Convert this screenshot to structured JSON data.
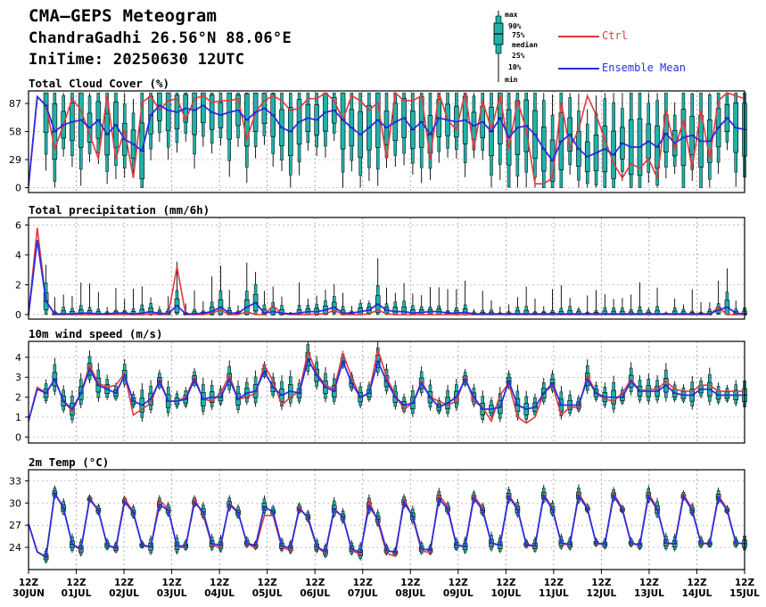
{
  "header": {
    "title": "CMA–GEPS Meteogram",
    "location": "ChandraGadhi 26.56°N 88.06°E",
    "init_time": "IniTime: 20250630 12UTC"
  },
  "legend": {
    "box_labels": [
      "max",
      "90%",
      "75%",
      "median",
      "25%",
      "10%",
      "min"
    ],
    "ctrl_label": "Ctrl",
    "mean_label": "Ensemble Mean",
    "ctrl_color": "#e0393e",
    "mean_color": "#2a2ee0",
    "box_color": "#20b2aa"
  },
  "x_axis": {
    "labels": [
      [
        "12Z",
        "30JUN"
      ],
      [
        "12Z",
        "01JUL"
      ],
      [
        "12Z",
        "02JUL"
      ],
      [
        "12Z",
        "03JUL"
      ],
      [
        "12Z",
        "04JUL"
      ],
      [
        "12Z",
        "05JUL"
      ],
      [
        "12Z",
        "06JUL"
      ],
      [
        "12Z",
        "07JUL"
      ],
      [
        "12Z",
        "08JUL"
      ],
      [
        "12Z",
        "09JUL"
      ],
      [
        "12Z",
        "10JUL"
      ],
      [
        "12Z",
        "11JUL"
      ],
      [
        "12Z",
        "12JUL"
      ],
      [
        "12Z",
        "13JUL"
      ],
      [
        "12Z",
        "14JUL"
      ],
      [
        "12Z",
        "15JUL"
      ]
    ]
  },
  "chart_data": [
    {
      "type": "box",
      "title": "Total Cloud Cover (%)",
      "ylim": [
        -5,
        100
      ],
      "yticks": [
        0,
        29,
        58,
        87
      ],
      "box_start_index": 2,
      "ctrl": [
        2,
        94,
        85,
        40,
        65,
        92,
        80,
        55,
        30,
        95,
        30,
        60,
        10,
        88,
        95,
        80,
        90,
        92,
        70,
        92,
        95,
        88,
        90,
        90,
        92,
        50,
        78,
        90,
        95,
        90,
        80,
        82,
        92,
        92,
        98,
        90,
        70,
        95,
        90,
        80,
        88,
        30,
        98,
        90,
        90,
        95,
        30,
        98,
        70,
        60,
        98,
        40,
        90,
        60,
        95,
        40,
        90,
        60,
        4,
        4,
        10,
        88,
        40,
        60,
        95,
        75,
        50,
        25,
        10,
        25,
        20,
        30,
        10,
        80,
        40,
        70,
        20,
        80,
        30,
        90,
        98,
        95,
        92
      ],
      "mean": [
        2,
        94,
        85,
        58,
        65,
        68,
        70,
        62,
        70,
        55,
        65,
        50,
        45,
        38,
        75,
        85,
        80,
        78,
        82,
        80,
        85,
        78,
        75,
        78,
        80,
        70,
        78,
        82,
        75,
        62,
        58,
        68,
        72,
        70,
        78,
        80,
        70,
        62,
        55,
        62,
        70,
        62,
        68,
        72,
        60,
        68,
        55,
        72,
        70,
        68,
        70,
        64,
        68,
        58,
        72,
        52,
        62,
        64,
        55,
        40,
        28,
        48,
        55,
        40,
        32,
        36,
        40,
        34,
        46,
        42,
        42,
        48,
        42,
        56,
        46,
        52,
        54,
        48,
        48,
        62,
        72,
        62,
        60
      ]
    },
    {
      "type": "box",
      "title": "Total precipitation (mm/6h)",
      "ylim": [
        -0.3,
        6.5
      ],
      "yticks": [
        0,
        2,
        4,
        6
      ],
      "box_start_index": 2,
      "ctrl": [
        0,
        5.8,
        0.9,
        0,
        0,
        0,
        0,
        0,
        0,
        0,
        0,
        0,
        0,
        0,
        0.05,
        0,
        0,
        3.2,
        0,
        0,
        0,
        0.1,
        0.3,
        0,
        0,
        0.2,
        0,
        0,
        0.6,
        0.05,
        0,
        0,
        0,
        0.05,
        0.05,
        0.3,
        0,
        0,
        0,
        0.05,
        0.3,
        0.05,
        0,
        0,
        0,
        0,
        0,
        0,
        0,
        0,
        0,
        0,
        0,
        0,
        0,
        0,
        0,
        0,
        0,
        0,
        0,
        0,
        0,
        0,
        0,
        0,
        0,
        0,
        0,
        0,
        0,
        0,
        0,
        0,
        0,
        0,
        0,
        0,
        0,
        0.5,
        0,
        0,
        0
      ],
      "mean": [
        0,
        5.0,
        0.9,
        0.05,
        0.05,
        0.05,
        0.1,
        0.1,
        0.05,
        0.05,
        0.1,
        0.1,
        0.05,
        0.1,
        0.2,
        0.05,
        0.1,
        0.6,
        0.05,
        0.05,
        0.1,
        0.2,
        0.5,
        0.1,
        0.1,
        0.5,
        0.8,
        0.1,
        0.2,
        0.1,
        0.05,
        0.1,
        0.2,
        0.2,
        0.3,
        0.5,
        0.1,
        0.1,
        0.2,
        0.3,
        0.7,
        0.3,
        0.2,
        0.2,
        0.1,
        0.15,
        0.2,
        0.2,
        0.1,
        0.1,
        0.15,
        0.05,
        0.05,
        0.05,
        0.05,
        0.05,
        0.05,
        0.05,
        0.05,
        0.05,
        0.05,
        0.05,
        0.05,
        0.05,
        0.05,
        0.05,
        0.05,
        0.05,
        0.05,
        0.05,
        0.05,
        0.05,
        0.05,
        0.05,
        0.05,
        0.05,
        0.05,
        0.05,
        0.05,
        0.3,
        0.5,
        0.1,
        0.05
      ]
    },
    {
      "type": "box",
      "title": "10m wind speed (m/s)",
      "ylim": [
        -0.3,
        4.8
      ],
      "yticks": [
        0,
        1,
        2,
        3,
        4
      ],
      "box_start_index": 2,
      "ctrl": [
        0.8,
        2.5,
        2.2,
        2.9,
        1.8,
        1.3,
        2.2,
        3.6,
        2.7,
        2.5,
        2.6,
        3.2,
        1.1,
        1.4,
        1.7,
        2.9,
        1.8,
        1.8,
        2.0,
        3.0,
        1.9,
        1.8,
        2.2,
        3.1,
        1.9,
        2.0,
        2.2,
        3.6,
        2.8,
        1.6,
        2.0,
        2.3,
        4.3,
        3.2,
        2.6,
        2.4,
        4.2,
        3.0,
        2.0,
        2.2,
        4.4,
        3.0,
        2.1,
        1.4,
        1.7,
        2.8,
        2.0,
        1.8,
        1.6,
        1.8,
        3.0,
        1.8,
        1.5,
        0.8,
        2.1,
        2.7,
        1.0,
        0.7,
        1.0,
        2.2,
        2.6,
        1.1,
        1.5,
        1.5,
        3.1,
        2.2,
        1.9,
        1.8,
        2.2,
        2.9,
        2.3,
        2.4,
        2.4,
        2.8,
        2.4,
        2.3,
        2.3,
        2.6,
        2.6,
        2.3,
        2.3,
        2.3,
        2.3
      ],
      "mean": [
        0.8,
        2.4,
        2.2,
        2.9,
        1.8,
        1.4,
        2.2,
        3.4,
        2.6,
        2.4,
        2.2,
        3.1,
        1.8,
        1.6,
        1.9,
        2.8,
        1.8,
        1.8,
        1.9,
        2.9,
        1.9,
        2.0,
        2.0,
        2.9,
        1.9,
        2.2,
        2.3,
        3.3,
        2.5,
        2.1,
        2.3,
        2.2,
        3.9,
        3.1,
        2.5,
        2.3,
        3.8,
        2.7,
        2.0,
        2.2,
        3.8,
        2.8,
        2.0,
        1.6,
        1.7,
        2.7,
        2.0,
        1.5,
        1.7,
        2.0,
        2.9,
        2.0,
        1.4,
        1.4,
        1.5,
        2.8,
        1.6,
        1.4,
        1.5,
        2.2,
        2.7,
        1.6,
        1.6,
        1.6,
        2.9,
        2.2,
        2.0,
        2.0,
        2.0,
        2.8,
        2.3,
        2.3,
        2.3,
        2.6,
        2.2,
        2.1,
        2.1,
        2.4,
        2.4,
        2.1,
        2.1,
        2.1,
        2.1
      ]
    },
    {
      "type": "box",
      "title": "2m Temp (°C)",
      "ylim": [
        21.0,
        34.5
      ],
      "yticks": [
        24,
        27,
        30,
        33
      ],
      "box_start_index": 2,
      "ctrl": [
        27.2,
        23.4,
        22.6,
        31.3,
        29.4,
        24.4,
        23.6,
        30.7,
        29.0,
        24.3,
        23.8,
        30.6,
        28.8,
        24.3,
        24.0,
        30.4,
        29.2,
        24.0,
        24.0,
        30.6,
        28.3,
        24.3,
        24.0,
        30.0,
        28.8,
        24.5,
        23.9,
        28.3,
        28.3,
        24.0,
        23.6,
        29.5,
        27.8,
        24.0,
        23.2,
        29.0,
        28.2,
        23.6,
        23.0,
        30.3,
        27.5,
        23.2,
        22.8,
        30.6,
        28.0,
        23.5,
        23.3,
        31.1,
        29.5,
        24.3,
        24.2,
        31.0,
        29.3,
        24.5,
        24.3,
        31.1,
        29.3,
        24.3,
        24.1,
        31.2,
        29.3,
        24.5,
        24.3,
        31.3,
        29.4,
        24.5,
        24.4,
        31.3,
        29.3,
        24.5,
        24.3,
        31.3,
        29.3,
        24.5,
        24.5,
        31.2,
        29.2,
        24.5,
        24.5,
        31.0,
        29.2,
        24.6,
        24.5
      ],
      "mean": [
        27.2,
        23.4,
        22.7,
        31.3,
        29.3,
        24.4,
        23.8,
        30.5,
        29.0,
        24.3,
        23.9,
        30.2,
        28.7,
        24.3,
        24.1,
        29.8,
        29.0,
        24.2,
        24.2,
        30.1,
        28.8,
        24.5,
        24.3,
        29.8,
        28.7,
        24.6,
        24.2,
        29.5,
        28.8,
        24.2,
        23.9,
        29.2,
        28.1,
        24.1,
        23.4,
        29.2,
        28.1,
        23.8,
        23.3,
        29.6,
        27.8,
        23.6,
        23.3,
        30.1,
        28.2,
        23.8,
        23.6,
        30.6,
        29.2,
        24.3,
        24.1,
        30.7,
        29.0,
        24.6,
        24.3,
        30.9,
        29.1,
        24.4,
        24.2,
        31.0,
        29.1,
        24.6,
        24.4,
        31.0,
        29.2,
        24.6,
        24.4,
        31.0,
        29.1,
        24.6,
        24.3,
        31.0,
        29.1,
        24.6,
        24.5,
        30.9,
        29.0,
        24.6,
        24.5,
        30.8,
        29.0,
        24.6,
        24.5
      ]
    }
  ]
}
